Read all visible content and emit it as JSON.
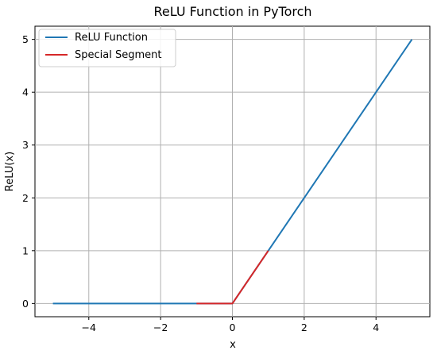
{
  "chart_data": {
    "type": "line",
    "title": "ReLU Function in PyTorch",
    "xlabel": "x",
    "ylabel": "ReLU(x)",
    "xlim": [
      -5.5,
      5.5
    ],
    "ylim": [
      -0.25,
      5.25
    ],
    "xticks": [
      -4,
      -2,
      0,
      2,
      4
    ],
    "yticks": [
      0,
      1,
      2,
      3,
      4,
      5
    ],
    "grid": true,
    "legend_position": "upper-left",
    "series": [
      {
        "name": "ReLU Function",
        "color": "#1f77b4",
        "x": [
          -5,
          -4,
          -3,
          -2,
          -1,
          0,
          1,
          2,
          3,
          4,
          5
        ],
        "y": [
          0,
          0,
          0,
          0,
          0,
          0,
          1,
          2,
          3,
          4,
          5
        ]
      },
      {
        "name": "Special Segment",
        "color": "#d62728",
        "x": [
          -1,
          -0.5,
          -0.1,
          0,
          0.1,
          0.5,
          1
        ],
        "y": [
          0,
          0,
          0,
          0,
          0.1,
          0.5,
          1
        ]
      }
    ]
  }
}
